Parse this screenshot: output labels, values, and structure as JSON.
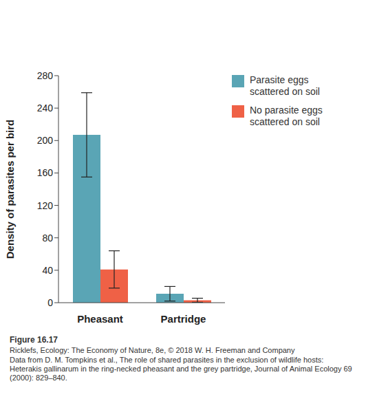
{
  "chart_data": {
    "type": "bar",
    "categories": [
      "Pheasant",
      "Partridge"
    ],
    "y_label": "Density of parasites per bird",
    "series": [
      {
        "name": "Parasite eggs scattered on soil",
        "color": "#5aa5b5",
        "values": [
          207,
          11
        ],
        "errors": [
          52,
          9
        ]
      },
      {
        "name": "No parasite eggs scattered on soil",
        "color": "#ef6146",
        "values": [
          41,
          3
        ],
        "errors": [
          23,
          2.5
        ]
      }
    ],
    "ylim": [
      0,
      280
    ],
    "yticks": [
      0,
      40,
      80,
      120,
      160,
      200,
      240,
      280
    ],
    "grid": false,
    "legend": "upper right",
    "caption": {
      "figure": "Figure 16.17",
      "lines": [
        "Ricklefs, Ecology: The Economy of Nature, 8e, © 2018 W. H. Freeman and Company",
        "Data from D. M. Tompkins et al., The role of shared parasites in the exclusion of wildlife hosts: Heterakis gallinarum in the ring-necked pheasant and the grey partridge, Journal of Animal Ecology 69 (2000): 829–840."
      ]
    }
  }
}
